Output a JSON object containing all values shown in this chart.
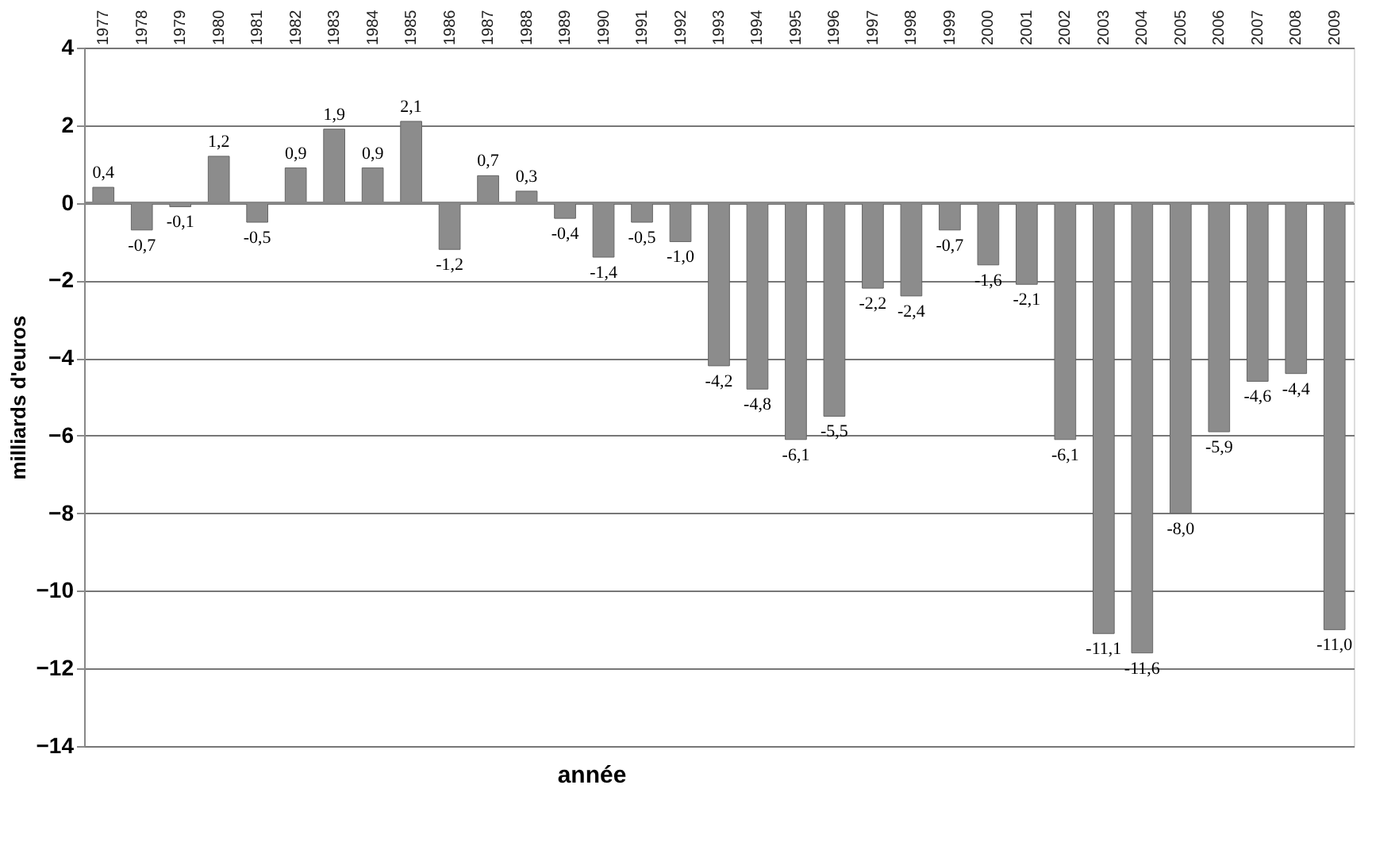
{
  "chart_data": {
    "type": "bar",
    "xlabel": "année",
    "ylabel": "milliards d'euros",
    "categories": [
      "1977",
      "1978",
      "1979",
      "1980",
      "1981",
      "1982",
      "1983",
      "1984",
      "1985",
      "1986",
      "1987",
      "1988",
      "1989",
      "1990",
      "1991",
      "1992",
      "1993",
      "1994",
      "1995",
      "1996",
      "1997",
      "1998",
      "1999",
      "2000",
      "2001",
      "2002",
      "2003",
      "2004",
      "2005",
      "2006",
      "2007",
      "2008",
      "2009"
    ],
    "values": [
      0.4,
      -0.7,
      -0.1,
      1.2,
      -0.5,
      0.9,
      1.9,
      0.9,
      2.1,
      -1.2,
      0.7,
      0.3,
      -0.4,
      -1.4,
      -0.5,
      -1.0,
      -4.2,
      -4.8,
      -6.1,
      -5.5,
      -2.2,
      -2.4,
      -0.7,
      -1.6,
      -2.1,
      -6.1,
      -11.1,
      -11.6,
      -8.0,
      -5.9,
      -4.6,
      -4.4,
      -11.0
    ],
    "value_labels": [
      "0,4",
      "-0,7",
      "-0,1",
      "1,2",
      "-0,5",
      "0,9",
      "1,9",
      "0,9",
      "2,1",
      "-1,2",
      "0,7",
      "0,3",
      "-0,4",
      "-1,4",
      "-0,5",
      "-1,0",
      "-4,2",
      "-4,8",
      "-6,1",
      "-5,5",
      "-2,2",
      "-2,4",
      "-0,7",
      "-1,6",
      "-2,1",
      "-6,1",
      "-11,1",
      "-11,6",
      "-8,0",
      "-5,9",
      "-4,6",
      "-4,4",
      "-11,0"
    ],
    "color": "#8c8c8c",
    "ylim": [
      -14,
      4
    ],
    "yticks": [
      -14,
      -12,
      -10,
      -8,
      -6,
      -4,
      -2,
      0,
      2,
      4
    ],
    "grid": "y"
  }
}
